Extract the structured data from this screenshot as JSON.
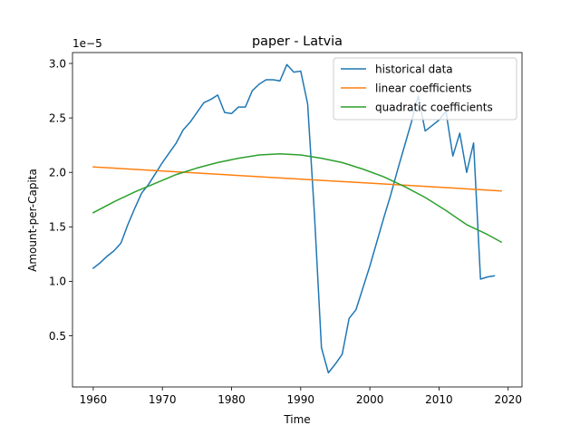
{
  "chart_data": {
    "type": "line",
    "title": "paper - Latvia",
    "xlabel": "Time",
    "ylabel": "Amount-per-Capita",
    "y_offset_label": "1e−5",
    "xlim": [
      1957,
      2022
    ],
    "ylim": [
      0.03,
      3.1
    ],
    "x_ticks": [
      1960,
      1970,
      1980,
      1990,
      2000,
      2010,
      2020
    ],
    "x_tick_labels": [
      "1960",
      "1970",
      "1980",
      "1990",
      "2000",
      "2010",
      "2020"
    ],
    "y_ticks": [
      0.5,
      1.0,
      1.5,
      2.0,
      2.5,
      3.0
    ],
    "y_tick_labels": [
      "0.5",
      "1.0",
      "1.5",
      "2.0",
      "2.5",
      "3.0"
    ],
    "grid": false,
    "legend_position": "top-right",
    "series": [
      {
        "name": "historical data",
        "color": "#1f77b4",
        "x": [
          1960,
          1961,
          1962,
          1963,
          1964,
          1965,
          1966,
          1967,
          1968,
          1969,
          1970,
          1971,
          1972,
          1973,
          1974,
          1975,
          1976,
          1977,
          1978,
          1979,
          1980,
          1981,
          1982,
          1983,
          1984,
          1985,
          1986,
          1987,
          1988,
          1989,
          1990,
          1991,
          1992,
          1993,
          1994,
          1995,
          1996,
          1997,
          1998,
          1999,
          2000,
          2001,
          2002,
          2003,
          2004,
          2005,
          2006,
          2007,
          2008,
          2009,
          2010,
          2011,
          2012,
          2013,
          2014,
          2015,
          2016,
          2017,
          2018
        ],
        "y": [
          1.12,
          1.17,
          1.23,
          1.28,
          1.35,
          1.52,
          1.67,
          1.81,
          1.89,
          1.99,
          2.09,
          2.18,
          2.27,
          2.39,
          2.46,
          2.55,
          2.64,
          2.67,
          2.71,
          2.55,
          2.54,
          2.6,
          2.6,
          2.75,
          2.81,
          2.85,
          2.85,
          2.84,
          2.99,
          2.92,
          2.93,
          2.63,
          1.6,
          0.39,
          0.16,
          0.24,
          0.33,
          0.66,
          0.74,
          0.94,
          1.14,
          1.36,
          1.58,
          1.79,
          2.02,
          2.24,
          2.46,
          2.7,
          2.38,
          2.43,
          2.48,
          2.56,
          2.15,
          2.36,
          2.0,
          2.27,
          1.02,
          1.04,
          1.05
        ]
      },
      {
        "name": "linear coefficients",
        "color": "#ff7f0e",
        "x": [
          1960,
          2019
        ],
        "y": [
          2.05,
          1.83
        ]
      },
      {
        "name": "quadratic coefficients",
        "color": "#2ca02c",
        "x": [
          1960,
          1963,
          1966,
          1969,
          1972,
          1975,
          1978,
          1981,
          1984,
          1987,
          1990,
          1993,
          1996,
          1999,
          2002,
          2005,
          2008,
          2011,
          2014,
          2017,
          2019
        ],
        "y": [
          1.63,
          1.73,
          1.82,
          1.9,
          1.98,
          2.04,
          2.09,
          2.13,
          2.16,
          2.17,
          2.16,
          2.13,
          2.09,
          2.03,
          1.96,
          1.87,
          1.77,
          1.65,
          1.52,
          1.43,
          1.36
        ]
      }
    ]
  }
}
